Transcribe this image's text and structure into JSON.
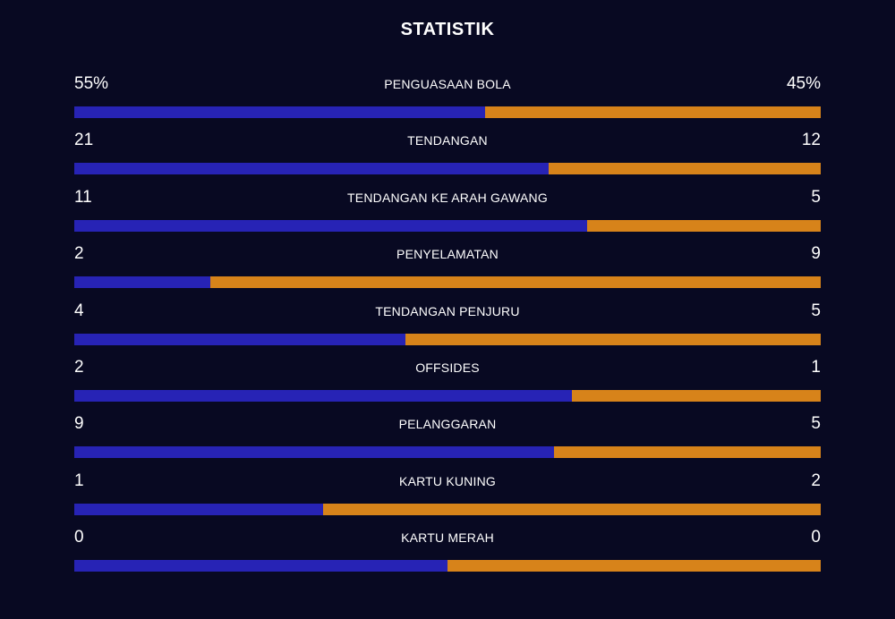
{
  "title": "STATISTIK",
  "colors": {
    "background": "#080922",
    "home": "#2723b5",
    "away": "#d7831a",
    "text": "#ffffff"
  },
  "stats": [
    {
      "label": "PENGUASAAN BOLA",
      "home": "55%",
      "away": "45%",
      "home_share": 0.55
    },
    {
      "label": "TENDANGAN",
      "home": "21",
      "away": "12",
      "home_share": 0.636
    },
    {
      "label": "TENDANGAN KE ARAH GAWANG",
      "home": "11",
      "away": "5",
      "home_share": 0.6875
    },
    {
      "label": "PENYELAMATAN",
      "home": "2",
      "away": "9",
      "home_share": 0.182
    },
    {
      "label": "TENDANGAN PENJURU",
      "home": "4",
      "away": "5",
      "home_share": 0.444
    },
    {
      "label": "OFFSIDES",
      "home": "2",
      "away": "1",
      "home_share": 0.667
    },
    {
      "label": "PELANGGARAN",
      "home": "9",
      "away": "5",
      "home_share": 0.643
    },
    {
      "label": "KARTU KUNING",
      "home": "1",
      "away": "2",
      "home_share": 0.333
    },
    {
      "label": "KARTU MERAH",
      "home": "0",
      "away": "0",
      "home_share": 0.5
    }
  ]
}
